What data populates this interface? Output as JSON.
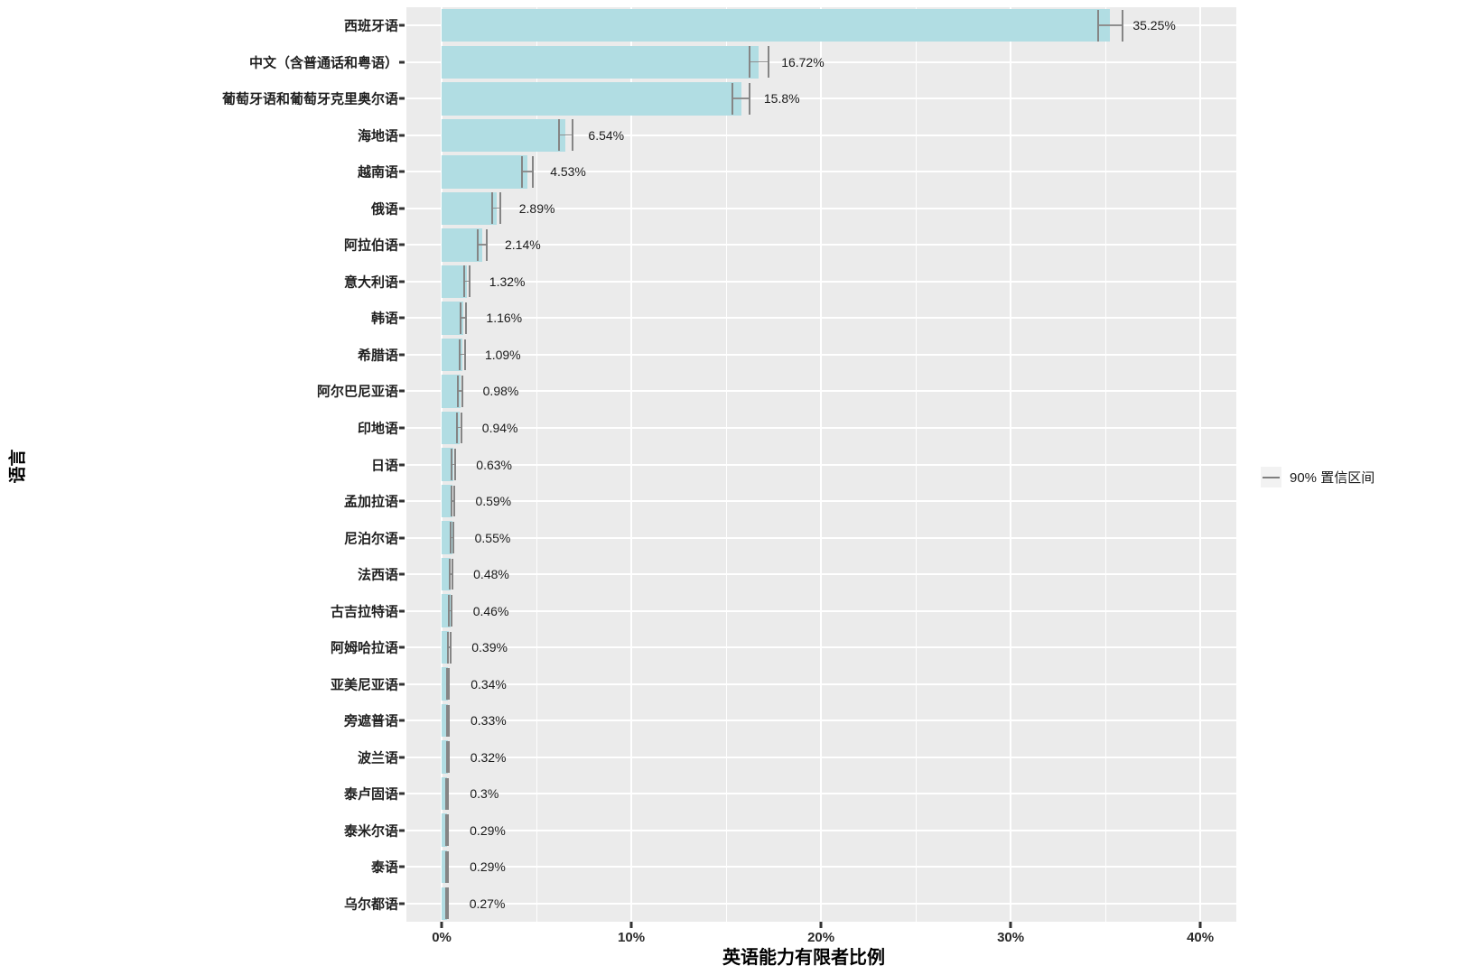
{
  "chart_data": {
    "type": "bar",
    "orientation": "horizontal",
    "title": "",
    "xlabel": "英语能力有限者比例",
    "ylabel": "语言",
    "xlim": [
      -1.86,
      41.9
    ],
    "x_ticks": [
      {
        "value": 0,
        "label": "0%"
      },
      {
        "value": 10,
        "label": "10%"
      },
      {
        "value": 20,
        "label": "20%"
      },
      {
        "value": 30,
        "label": "30%"
      },
      {
        "value": 40,
        "label": "40%"
      }
    ],
    "x_minor_ticks": [
      5,
      15,
      25,
      35
    ],
    "grid": {
      "panel_background": true,
      "major": "white",
      "minor": "white vertical midpoints",
      "horizontal_major_at_category_centers": true
    },
    "legend": {
      "label": "90% 置信区间",
      "position": "right"
    },
    "rows": [
      {
        "label": "西班牙语",
        "value": 35.25,
        "ci_half": 0.65,
        "value_label": "35.25%"
      },
      {
        "label": "中文（含普通话和粤语）",
        "value": 16.72,
        "ci_half": 0.5,
        "value_label": "16.72%"
      },
      {
        "label": "葡萄牙语和葡萄牙克里奥尔语",
        "value": 15.8,
        "ci_half": 0.45,
        "value_label": "15.8%"
      },
      {
        "label": "海地语",
        "value": 6.54,
        "ci_half": 0.35,
        "value_label": "6.54%"
      },
      {
        "label": "越南语",
        "value": 4.53,
        "ci_half": 0.28,
        "value_label": "4.53%"
      },
      {
        "label": "俄语",
        "value": 2.89,
        "ci_half": 0.22,
        "value_label": "2.89%"
      },
      {
        "label": "阿拉伯语",
        "value": 2.14,
        "ci_half": 0.25,
        "value_label": "2.14%"
      },
      {
        "label": "意大利语",
        "value": 1.32,
        "ci_half": 0.15,
        "value_label": "1.32%"
      },
      {
        "label": "韩语",
        "value": 1.16,
        "ci_half": 0.14,
        "value_label": "1.16%"
      },
      {
        "label": "希腊语",
        "value": 1.09,
        "ci_half": 0.13,
        "value_label": "1.09%"
      },
      {
        "label": "阿尔巴尼亚语",
        "value": 0.98,
        "ci_half": 0.12,
        "value_label": "0.98%"
      },
      {
        "label": "印地语",
        "value": 0.94,
        "ci_half": 0.12,
        "value_label": "0.94%"
      },
      {
        "label": "日语",
        "value": 0.63,
        "ci_half": 0.09,
        "value_label": "0.63%"
      },
      {
        "label": "孟加拉语",
        "value": 0.59,
        "ci_half": 0.09,
        "value_label": "0.59%"
      },
      {
        "label": "尼泊尔语",
        "value": 0.55,
        "ci_half": 0.08,
        "value_label": "0.55%"
      },
      {
        "label": "法西语",
        "value": 0.48,
        "ci_half": 0.07,
        "value_label": "0.48%"
      },
      {
        "label": "古吉拉特语",
        "value": 0.46,
        "ci_half": 0.07,
        "value_label": "0.46%"
      },
      {
        "label": "阿姆哈拉语",
        "value": 0.39,
        "ci_half": 0.07,
        "value_label": "0.39%"
      },
      {
        "label": "亚美尼亚语",
        "value": 0.34,
        "ci_half": 0.06,
        "value_label": "0.34%"
      },
      {
        "label": "旁遮普语",
        "value": 0.33,
        "ci_half": 0.06,
        "value_label": "0.33%"
      },
      {
        "label": "波兰语",
        "value": 0.32,
        "ci_half": 0.06,
        "value_label": "0.32%"
      },
      {
        "label": "泰卢固语",
        "value": 0.3,
        "ci_half": 0.05,
        "value_label": "0.3%"
      },
      {
        "label": "泰米尔语",
        "value": 0.29,
        "ci_half": 0.05,
        "value_label": "0.29%"
      },
      {
        "label": "泰语",
        "value": 0.29,
        "ci_half": 0.05,
        "value_label": "0.29%"
      },
      {
        "label": "乌尔都语",
        "value": 0.27,
        "ci_half": 0.05,
        "value_label": "0.27%"
      }
    ],
    "colors": {
      "bar_fill": "#B1DDE3",
      "panel_background": "#EBEBEB",
      "gridline": "#FFFFFF",
      "error_bar": "#858585",
      "text": "#1A1A1A",
      "legend_key_background": "#F2F2F2"
    }
  }
}
